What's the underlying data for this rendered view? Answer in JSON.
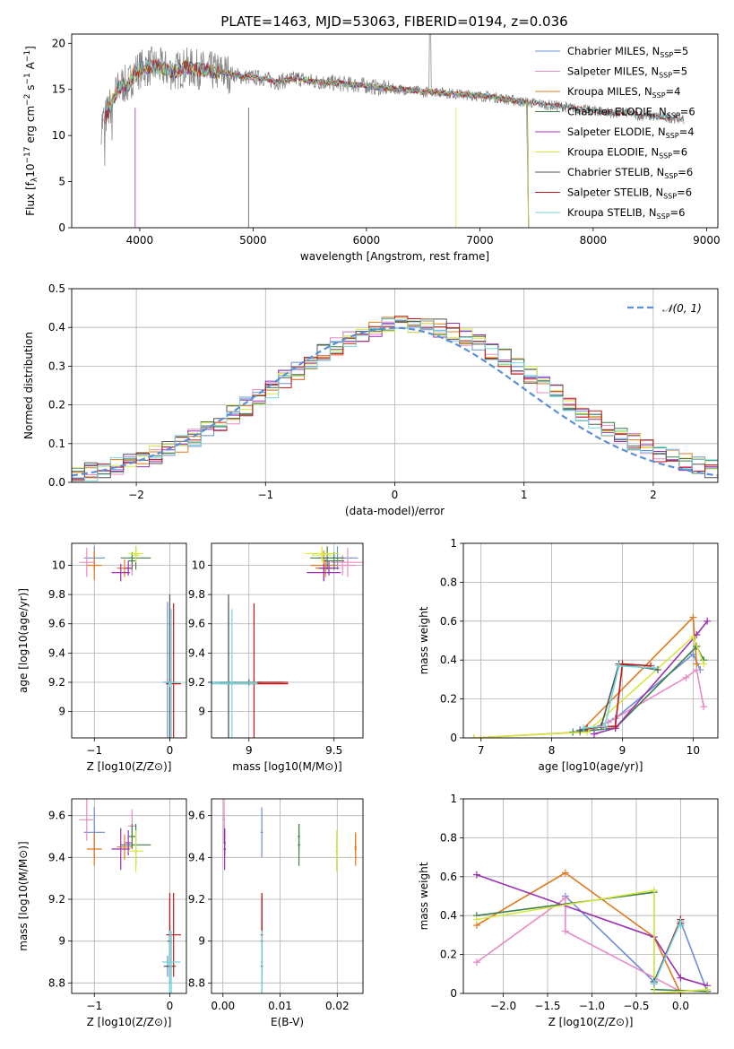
{
  "title": "PLATE=1463, MJD=53063, FIBERID=0194, z=0.036",
  "colors": {
    "Chabrier MILES": "#6a8fd8",
    "Salpeter MILES": "#e88cc4",
    "Kroupa MILES": "#e07b20",
    "Chabrier ELODIE": "#3f7f4a",
    "Salpeter ELODIE": "#9b30b0",
    "Kroupa ELODIE": "#d6e840",
    "Chabrier STELIB": "#555555",
    "Salpeter STELIB": "#c01818",
    "Kroupa STELIB": "#70d8dc",
    "data": "#808080",
    "normal": "#5b8fd8"
  },
  "chart_data": [
    {
      "id": "spectrum",
      "type": "line",
      "xlabel": "wavelength [Angstrom, rest frame]",
      "ylabel_parts": [
        "Flux [f",
        "λ",
        "10",
        "−17",
        " erg cm",
        "−2",
        " s",
        "−1",
        " A",
        "−1",
        "]"
      ],
      "xlim": [
        3400,
        9100
      ],
      "ylim": [
        0,
        21
      ],
      "xticks": [
        4000,
        5000,
        6000,
        7000,
        8000,
        9000
      ],
      "yticks": [
        0,
        5,
        10,
        15,
        20
      ],
      "legend_position": "upper right",
      "legend": [
        {
          "name": "Chabrier MILES",
          "n": "5"
        },
        {
          "name": "Salpeter MILES",
          "n": "5"
        },
        {
          "name": "Kroupa MILES",
          "n": "4"
        },
        {
          "name": "Chabrier ELODIE",
          "n": "6"
        },
        {
          "name": "Salpeter ELODIE",
          "n": "4"
        },
        {
          "name": "Kroupa ELODIE",
          "n": "6"
        },
        {
          "name": "Chabrier STELIB",
          "n": "6"
        },
        {
          "name": "Salpeter STELIB",
          "n": "6"
        },
        {
          "name": "Kroupa STELIB",
          "n": "6"
        }
      ],
      "legend_n_label": "N",
      "legend_n_sub": "SSP",
      "data_series": {
        "wavelength": [
          3660,
          3700,
          3750,
          3800,
          3850,
          3900,
          3950,
          4000,
          4100,
          4200,
          4300,
          4400,
          4500,
          4600,
          4700,
          4800,
          4900,
          5000,
          5100,
          5200,
          5300,
          5400,
          5500,
          5600,
          5700,
          5800,
          5900,
          6000,
          6100,
          6200,
          6300,
          6400,
          6500,
          6600,
          6700,
          6800,
          6900,
          7000,
          7100,
          7200,
          7300,
          7400,
          7500,
          7600,
          7700,
          7800,
          7900,
          8000,
          8100,
          8200,
          8300,
          8400,
          8500,
          8600,
          8700,
          8800
        ],
        "flux": [
          11.2,
          12.0,
          13.5,
          14.8,
          15.6,
          15.4,
          16.8,
          17.2,
          17.5,
          17.3,
          16.9,
          17.4,
          17.2,
          17.0,
          16.9,
          16.7,
          16.4,
          16.3,
          16.2,
          15.8,
          16.0,
          16.2,
          15.9,
          15.8,
          15.7,
          15.6,
          15.5,
          15.4,
          15.2,
          15.1,
          15.0,
          14.9,
          14.7,
          14.8,
          14.6,
          14.5,
          14.4,
          14.3,
          14.2,
          14.0,
          13.8,
          13.6,
          13.5,
          13.3,
          13.2,
          13.0,
          12.8,
          12.7,
          12.6,
          12.4,
          12.5,
          12.2,
          12.1,
          12.0,
          11.9,
          11.8
        ]
      }
    },
    {
      "id": "residuals",
      "type": "line",
      "xlabel": "(data-model)/error",
      "ylabel": "Normed distribution",
      "xlim": [
        -2.5,
        2.5
      ],
      "ylim": [
        0,
        0.5
      ],
      "xticks": [
        -2,
        -1,
        0,
        1,
        2
      ],
      "xtick_labels": [
        "−2",
        "−1",
        "0",
        "1",
        "2"
      ],
      "yticks": [
        0.0,
        0.1,
        0.2,
        0.3,
        0.4,
        0.5
      ],
      "ytick_labels": [
        "0.0",
        "0.1",
        "0.2",
        "0.3",
        "0.4",
        "0.5"
      ],
      "grid": true,
      "legend": "𝒩(0, 1)",
      "legend_position": "upper right"
    },
    {
      "id": "age_vs_Z",
      "type": "scatter",
      "xlabel": "Z [log10(Z/Z⊙)]",
      "ylabel": "age  [log10(age/yr)]",
      "xlim": [
        -1.3,
        0.22
      ],
      "ylim": [
        8.82,
        10.15
      ],
      "xticks": [
        -1,
        0
      ],
      "xtick_labels": [
        "−1",
        "0"
      ],
      "yticks": [
        9.0,
        9.2,
        9.4,
        9.6,
        9.8,
        10.0
      ]
    },
    {
      "id": "age_vs_mass",
      "type": "scatter",
      "xlabel": "mass [log10(M/M⊙)]",
      "xlim": [
        8.78,
        9.67
      ],
      "ylim": [
        8.82,
        10.15
      ],
      "xticks": [
        9.0,
        9.5
      ],
      "yticks": [
        9.0,
        9.2,
        9.4,
        9.6,
        9.8,
        10.0
      ]
    },
    {
      "id": "massweight_vs_age",
      "type": "line",
      "xlabel": "age  [log10(age/yr)]",
      "ylabel": "mass weight",
      "xlim": [
        6.75,
        10.35
      ],
      "ylim": [
        0,
        1
      ],
      "xticks": [
        7,
        8,
        9,
        10
      ],
      "yticks": [
        0.0,
        0.2,
        0.4,
        0.6,
        0.8,
        1.0
      ],
      "grid": true
    },
    {
      "id": "mass_vs_Z",
      "type": "scatter",
      "xlabel": "Z [log10(Z/Z⊙)]",
      "ylabel": "mass [log10(M/M⊙)]",
      "xlim": [
        -1.3,
        0.22
      ],
      "ylim": [
        8.75,
        9.68
      ],
      "xticks": [
        -1,
        0
      ],
      "xtick_labels": [
        "−1",
        "0"
      ],
      "yticks": [
        8.8,
        9.0,
        9.2,
        9.4,
        9.6
      ]
    },
    {
      "id": "mass_vs_ebv",
      "type": "scatter",
      "xlabel": "E(B-V)",
      "xlim": [
        -0.002,
        0.0245
      ],
      "ylim": [
        8.75,
        9.68
      ],
      "xticks": [
        0.0,
        0.01,
        0.02
      ],
      "xtick_labels": [
        "0.00",
        "0.01",
        "0.02"
      ],
      "yticks": [
        8.8,
        9.0,
        9.2,
        9.4,
        9.6
      ]
    },
    {
      "id": "massweight_vs_Z",
      "type": "line",
      "xlabel": "Z [log10(Z/Z⊙)]",
      "ylabel": "mass weight",
      "xlim": [
        -2.45,
        0.42
      ],
      "ylim": [
        0,
        1
      ],
      "xticks": [
        -2.0,
        -1.5,
        -1.0,
        -0.5,
        0.0
      ],
      "xtick_labels": [
        "−2.0",
        "−1.5",
        "−1.0",
        "−0.5",
        "0.0"
      ],
      "yticks": [
        0.0,
        0.2,
        0.4,
        0.6,
        0.8,
        1.0
      ],
      "grid": true
    }
  ],
  "models": [
    {
      "name": "Chabrier MILES",
      "ebv": 0.0068,
      "age_w": [
        [
          8.4,
          0.03
        ],
        [
          8.6,
          0.05
        ],
        [
          8.9,
          0.1
        ],
        [
          10.0,
          0.43
        ],
        [
          10.1,
          0.35
        ]
      ],
      "Z_w": [
        [
          -1.3,
          0.5
        ],
        [
          -0.3,
          0.06
        ],
        [
          0.0,
          0.37
        ],
        [
          0.3,
          0.01
        ]
      ],
      "comps": [
        {
          "Z": -1.0,
          "dZ": 0.14,
          "age": 10.05,
          "dage": 0.08,
          "mass": 9.52,
          "dmass": 0.12
        },
        {
          "Z": -0.03,
          "dZ": 0.03,
          "age": 9.2,
          "dage": 0.55,
          "mass": 8.88,
          "dmass": 0.05
        }
      ]
    },
    {
      "name": "Salpeter MILES",
      "ebv": 0.0002,
      "age_w": [
        [
          8.5,
          0.04
        ],
        [
          8.8,
          0.08
        ],
        [
          9.9,
          0.31
        ],
        [
          10.05,
          0.35
        ],
        [
          10.15,
          0.16
        ]
      ],
      "Z_w": [
        [
          -2.3,
          0.16
        ],
        [
          -1.3,
          0.49
        ],
        [
          -1.3,
          0.32
        ],
        [
          0.0,
          0.01
        ]
      ],
      "comps": [
        {
          "Z": -1.1,
          "dZ": 0.1,
          "age": 10.02,
          "dage": 0.1,
          "mass": 9.58,
          "dmass": 0.1
        },
        {
          "Z": -0.5,
          "dZ": 0.05,
          "age": 10.0,
          "dage": 0.07,
          "mass": 9.55,
          "dmass": 0.08
        }
      ]
    },
    {
      "name": "Kroupa MILES",
      "ebv": 0.0232,
      "age_w": [
        [
          6.9,
          0.0
        ],
        [
          8.4,
          0.03
        ],
        [
          10.0,
          0.62
        ],
        [
          10.05,
          0.38
        ]
      ],
      "Z_w": [
        [
          -2.3,
          0.35
        ],
        [
          -1.3,
          0.62
        ],
        [
          -0.3,
          0.29
        ],
        [
          0.0,
          0.0
        ]
      ],
      "comps": [
        {
          "Z": -1.0,
          "dZ": 0.1,
          "age": 10.0,
          "dage": 0.1,
          "mass": 9.44,
          "dmass": 0.08
        },
        {
          "Z": -0.6,
          "dZ": 0.1,
          "age": 9.98,
          "dage": 0.06,
          "mass": 9.45,
          "dmass": 0.06
        }
      ]
    },
    {
      "name": "Chabrier ELODIE",
      "ebv": 0.0133,
      "age_w": [
        [
          8.3,
          0.03
        ],
        [
          8.9,
          0.05
        ],
        [
          10.05,
          0.47
        ],
        [
          10.15,
          0.4
        ]
      ],
      "Z_w": [
        [
          -2.3,
          0.4
        ],
        [
          -0.3,
          0.52
        ],
        [
          -0.3,
          0.02
        ],
        [
          0.3,
          0.01
        ]
      ],
      "comps": [
        {
          "Z": -0.45,
          "dZ": 0.2,
          "age": 10.05,
          "dage": 0.08,
          "mass": 9.46,
          "dmass": 0.1
        },
        {
          "Z": -0.5,
          "dZ": 0.05,
          "age": 10.03,
          "dage": 0.06,
          "mass": 9.5,
          "dmass": 0.06
        }
      ]
    },
    {
      "name": "Salpeter ELODIE",
      "ebv": 0.0003,
      "age_w": [
        [
          8.6,
          0.02
        ],
        [
          8.9,
          0.05
        ],
        [
          10.05,
          0.53
        ],
        [
          10.2,
          0.6
        ]
      ],
      "Z_w": [
        [
          -2.3,
          0.61
        ],
        [
          -0.3,
          0.29
        ],
        [
          0.0,
          0.08
        ],
        [
          0.3,
          0.04
        ]
      ],
      "comps": [
        {
          "Z": -0.65,
          "dZ": 0.12,
          "age": 9.95,
          "dage": 0.06,
          "mass": 9.44,
          "dmass": 0.1
        },
        {
          "Z": -0.55,
          "dZ": 0.04,
          "age": 9.98,
          "dage": 0.05,
          "mass": 9.47,
          "dmass": 0.06
        }
      ]
    },
    {
      "name": "Kroupa ELODIE",
      "ebv": 0.0199,
      "age_w": [
        [
          6.9,
          0.0
        ],
        [
          8.5,
          0.03
        ],
        [
          10.0,
          0.52
        ],
        [
          10.15,
          0.38
        ]
      ],
      "Z_w": [
        [
          -2.3,
          0.38
        ],
        [
          -0.3,
          0.53
        ],
        [
          -0.3,
          0.0
        ],
        [
          0.3,
          0.02
        ]
      ],
      "comps": [
        {
          "Z": -0.45,
          "dZ": 0.1,
          "age": 10.08,
          "dage": 0.05,
          "mass": 9.43,
          "dmass": 0.1
        },
        {
          "Z": -0.45,
          "dZ": 0.05,
          "age": 10.07,
          "dage": 0.05,
          "mass": 9.43,
          "dmass": 0.06
        }
      ]
    },
    {
      "name": "Chabrier STELIB",
      "ebv": 0.0068,
      "age_w": [
        [
          8.4,
          0.04
        ],
        [
          8.7,
          0.06
        ],
        [
          8.95,
          0.38
        ],
        [
          9.5,
          0.35
        ]
      ],
      "Z_w": [
        [
          -0.3,
          0.06
        ],
        [
          0.0,
          0.38
        ],
        [
          0.0,
          0.35
        ]
      ],
      "comps": [
        {
          "Z": 0.0,
          "dZ": 0.08,
          "age": 9.2,
          "dage": 0.6,
          "mass": 8.88,
          "dmass": 0.2
        },
        {
          "Z": 0.0,
          "dZ": 0.03,
          "age": 9.2,
          "dage": 0.02,
          "mass": 9.0,
          "dmass": 0.2
        }
      ]
    },
    {
      "name": "Salpeter STELIB",
      "ebv": 0.0068,
      "age_w": [
        [
          8.5,
          0.05
        ],
        [
          8.9,
          0.06
        ],
        [
          9.0,
          0.38
        ],
        [
          9.4,
          0.37
        ]
      ],
      "Z_w": [
        [
          -0.3,
          0.05
        ],
        [
          0.0,
          0.38
        ],
        [
          0.0,
          0.36
        ]
      ],
      "comps": [
        {
          "Z": 0.05,
          "dZ": 0.1,
          "age": 9.19,
          "dage": 0.55,
          "mass": 9.03,
          "dmass": 0.2
        },
        {
          "Z": 0.0,
          "dZ": 0.02,
          "age": 9.2,
          "dage": 0.02,
          "mass": 9.03,
          "dmass": 0.2
        }
      ]
    },
    {
      "name": "Kroupa STELIB",
      "ebv": 0.0068,
      "age_w": [
        [
          8.45,
          0.05
        ],
        [
          8.75,
          0.06
        ],
        [
          8.95,
          0.37
        ],
        [
          9.45,
          0.36
        ]
      ],
      "Z_w": [
        [
          -0.3,
          0.05
        ],
        [
          0.0,
          0.37
        ],
        [
          0.0,
          0.35
        ]
      ],
      "comps": [
        {
          "Z": 0.02,
          "dZ": 0.12,
          "age": 9.2,
          "dage": 0.5,
          "mass": 8.9,
          "dmass": 0.15
        },
        {
          "Z": 0.0,
          "dZ": 0.02,
          "age": 9.19,
          "dage": 0.02,
          "mass": 8.9,
          "dmass": 0.15
        }
      ]
    }
  ]
}
